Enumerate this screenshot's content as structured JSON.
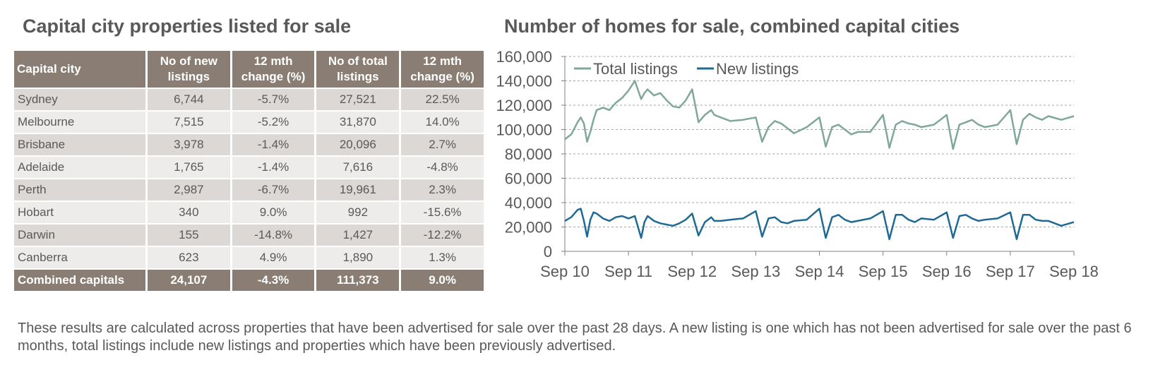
{
  "table": {
    "title": "Capital city properties listed for sale",
    "headers": [
      "Capital city",
      "No of new listings",
      "12 mth change (%)",
      "No of total listings",
      "12 mth change (%)"
    ],
    "rows": [
      [
        "Sydney",
        "6,744",
        "-5.7%",
        "27,521",
        "22.5%"
      ],
      [
        "Melbourne",
        "7,515",
        "-5.2%",
        "31,870",
        "14.0%"
      ],
      [
        "Brisbane",
        "3,978",
        "-1.4%",
        "20,096",
        "2.7%"
      ],
      [
        "Adelaide",
        "1,765",
        "-1.4%",
        "7,616",
        "-4.8%"
      ],
      [
        "Perth",
        "2,987",
        "-6.7%",
        "19,961",
        "2.3%"
      ],
      [
        "Hobart",
        "340",
        "9.0%",
        "992",
        "-15.6%"
      ],
      [
        "Darwin",
        "155",
        "-14.8%",
        "1,427",
        "-12.2%"
      ],
      [
        "Canberra",
        "623",
        "4.9%",
        "1,890",
        "1.3%"
      ]
    ],
    "total": [
      "Combined capitals",
      "24,107",
      "-4.3%",
      "111,373",
      "9.0%"
    ]
  },
  "chart_data": {
    "type": "line",
    "title": "Number of homes for sale, combined capital cities",
    "xlabel": "",
    "ylabel": "",
    "ylim": [
      0,
      160000
    ],
    "yticks": [
      0,
      20000,
      40000,
      60000,
      80000,
      100000,
      120000,
      140000,
      160000
    ],
    "ytick_labels": [
      "0",
      "20,000",
      "40,000",
      "60,000",
      "80,000",
      "100,000",
      "120,000",
      "140,000",
      "160,000"
    ],
    "xlim": [
      0,
      8
    ],
    "xticks": [
      0,
      1,
      2,
      3,
      4,
      5,
      6,
      7,
      8
    ],
    "xtick_labels": [
      "Sep 10",
      "Sep 11",
      "Sep 12",
      "Sep 13",
      "Sep 14",
      "Sep 15",
      "Sep 16",
      "Sep 17",
      "Sep 18"
    ],
    "grid": true,
    "legend_position": "top-left",
    "series": [
      {
        "name": "Total listings",
        "color": "#7fa899",
        "x": [
          0,
          0.1,
          0.2,
          0.25,
          0.3,
          0.35,
          0.4,
          0.45,
          0.5,
          0.6,
          0.7,
          0.8,
          0.9,
          1.0,
          1.1,
          1.2,
          1.25,
          1.3,
          1.4,
          1.5,
          1.6,
          1.7,
          1.8,
          1.9,
          2.0,
          2.1,
          2.2,
          2.3,
          2.35,
          2.45,
          2.6,
          2.8,
          3.0,
          3.1,
          3.2,
          3.3,
          3.4,
          3.5,
          3.6,
          3.8,
          4.0,
          4.1,
          4.2,
          4.3,
          4.4,
          4.5,
          4.6,
          4.8,
          5.0,
          5.1,
          5.2,
          5.3,
          5.4,
          5.5,
          5.6,
          5.8,
          6.0,
          6.1,
          6.2,
          6.3,
          6.4,
          6.5,
          6.6,
          6.8,
          7.0,
          7.1,
          7.2,
          7.3,
          7.4,
          7.5,
          7.6,
          7.8,
          8.0
        ],
        "values": [
          92000,
          96000,
          106000,
          110000,
          105000,
          90000,
          98000,
          108000,
          116000,
          118000,
          116000,
          122000,
          126000,
          132000,
          140000,
          125000,
          130000,
          133000,
          128000,
          130000,
          124000,
          119000,
          118000,
          124000,
          133000,
          106000,
          112000,
          116000,
          112000,
          110000,
          107000,
          108000,
          110000,
          90000,
          102000,
          107000,
          105000,
          101000,
          97000,
          102000,
          110000,
          86000,
          102000,
          104000,
          100000,
          96000,
          98000,
          98000,
          112000,
          85000,
          104000,
          107000,
          105000,
          104000,
          102000,
          104000,
          112000,
          84000,
          104000,
          106000,
          108000,
          104000,
          102000,
          104000,
          116000,
          88000,
          108000,
          113000,
          110000,
          108000,
          111000,
          108000,
          111000
        ]
      },
      {
        "name": "New listings",
        "color": "#1e6a94",
        "x": [
          0,
          0.1,
          0.2,
          0.25,
          0.3,
          0.35,
          0.4,
          0.45,
          0.5,
          0.6,
          0.7,
          0.8,
          0.9,
          1.0,
          1.1,
          1.2,
          1.25,
          1.3,
          1.4,
          1.5,
          1.6,
          1.7,
          1.8,
          1.9,
          2.0,
          2.1,
          2.2,
          2.3,
          2.35,
          2.45,
          2.6,
          2.8,
          3.0,
          3.1,
          3.2,
          3.3,
          3.4,
          3.5,
          3.6,
          3.8,
          4.0,
          4.1,
          4.2,
          4.3,
          4.4,
          4.5,
          4.6,
          4.8,
          5.0,
          5.1,
          5.2,
          5.3,
          5.4,
          5.5,
          5.6,
          5.8,
          6.0,
          6.1,
          6.2,
          6.3,
          6.4,
          6.5,
          6.6,
          6.8,
          7.0,
          7.1,
          7.2,
          7.3,
          7.4,
          7.5,
          7.6,
          7.8,
          8.0
        ],
        "values": [
          25000,
          28000,
          34000,
          35000,
          25000,
          12000,
          26000,
          32000,
          31000,
          27000,
          25000,
          28000,
          29000,
          27000,
          29000,
          11000,
          24000,
          29000,
          25000,
          23000,
          22000,
          21000,
          23000,
          26000,
          31000,
          13000,
          24000,
          28000,
          25000,
          25000,
          26000,
          27000,
          33000,
          12000,
          27000,
          28000,
          24000,
          23000,
          25000,
          26000,
          35000,
          11000,
          28000,
          30000,
          26000,
          24000,
          25000,
          27000,
          33000,
          10000,
          30000,
          30000,
          26000,
          24000,
          27000,
          26000,
          32000,
          11000,
          29000,
          30000,
          27000,
          25000,
          26000,
          27000,
          32000,
          10000,
          30000,
          30000,
          26000,
          25000,
          25000,
          21000,
          24000
        ]
      }
    ]
  },
  "footnote": "These results are calculated across properties that have been advertised for sale over the past 28 days.  A new listing is one which has not been advertised for sale over the past 6 months, total listings include new listings and properties which have been previously advertised."
}
